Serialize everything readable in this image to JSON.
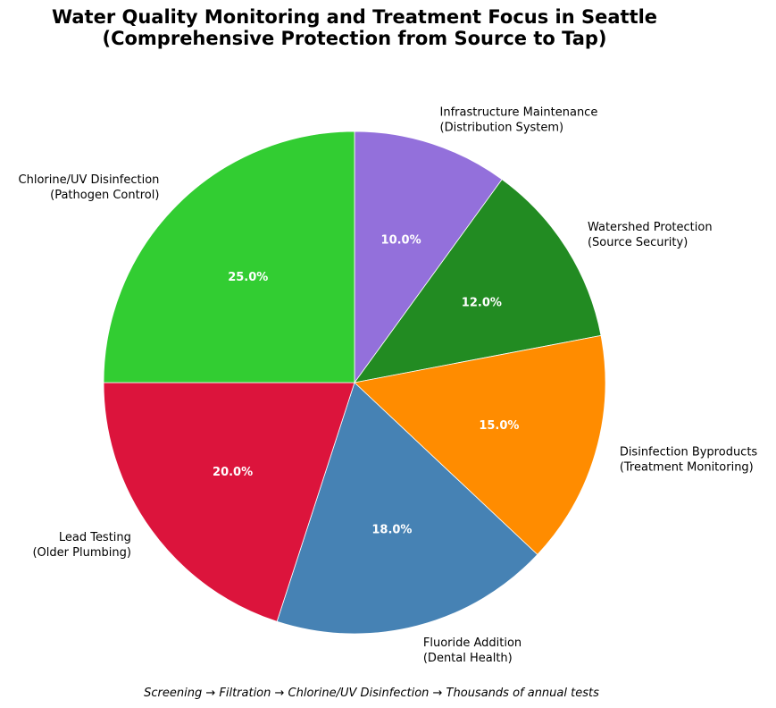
{
  "chart_data": {
    "type": "pie",
    "title_lines": [
      "Water Quality Monitoring and Treatment Focus in Seattle",
      "(Comprehensive Protection from Source to Tap)"
    ],
    "start_angle_deg": 90,
    "direction": "clockwise",
    "slices": [
      {
        "label_lines": [
          "Infrastructure Maintenance",
          "(Distribution System)"
        ],
        "value": 10.0,
        "pct_label": "10.0%",
        "color": "#9370db"
      },
      {
        "label_lines": [
          "Watershed Protection",
          "(Source Security)"
        ],
        "value": 12.0,
        "pct_label": "12.0%",
        "color": "#228b22"
      },
      {
        "label_lines": [
          "Disinfection Byproducts",
          "(Treatment Monitoring)"
        ],
        "value": 15.0,
        "pct_label": "15.0%",
        "color": "#ff8c00"
      },
      {
        "label_lines": [
          "Fluoride Addition",
          "(Dental Health)"
        ],
        "value": 18.0,
        "pct_label": "18.0%",
        "color": "#4682b4"
      },
      {
        "label_lines": [
          "Lead Testing",
          "(Older Plumbing)"
        ],
        "value": 20.0,
        "pct_label": "20.0%",
        "color": "#dc143c"
      },
      {
        "label_lines": [
          "Chlorine/UV Disinfection",
          "(Pathogen Control)"
        ],
        "value": 25.0,
        "pct_label": "25.0%",
        "color": "#32cd32"
      }
    ],
    "footnote": "Screening → Filtration → Chlorine/UV Disinfection → Thousands of annual tests"
  }
}
